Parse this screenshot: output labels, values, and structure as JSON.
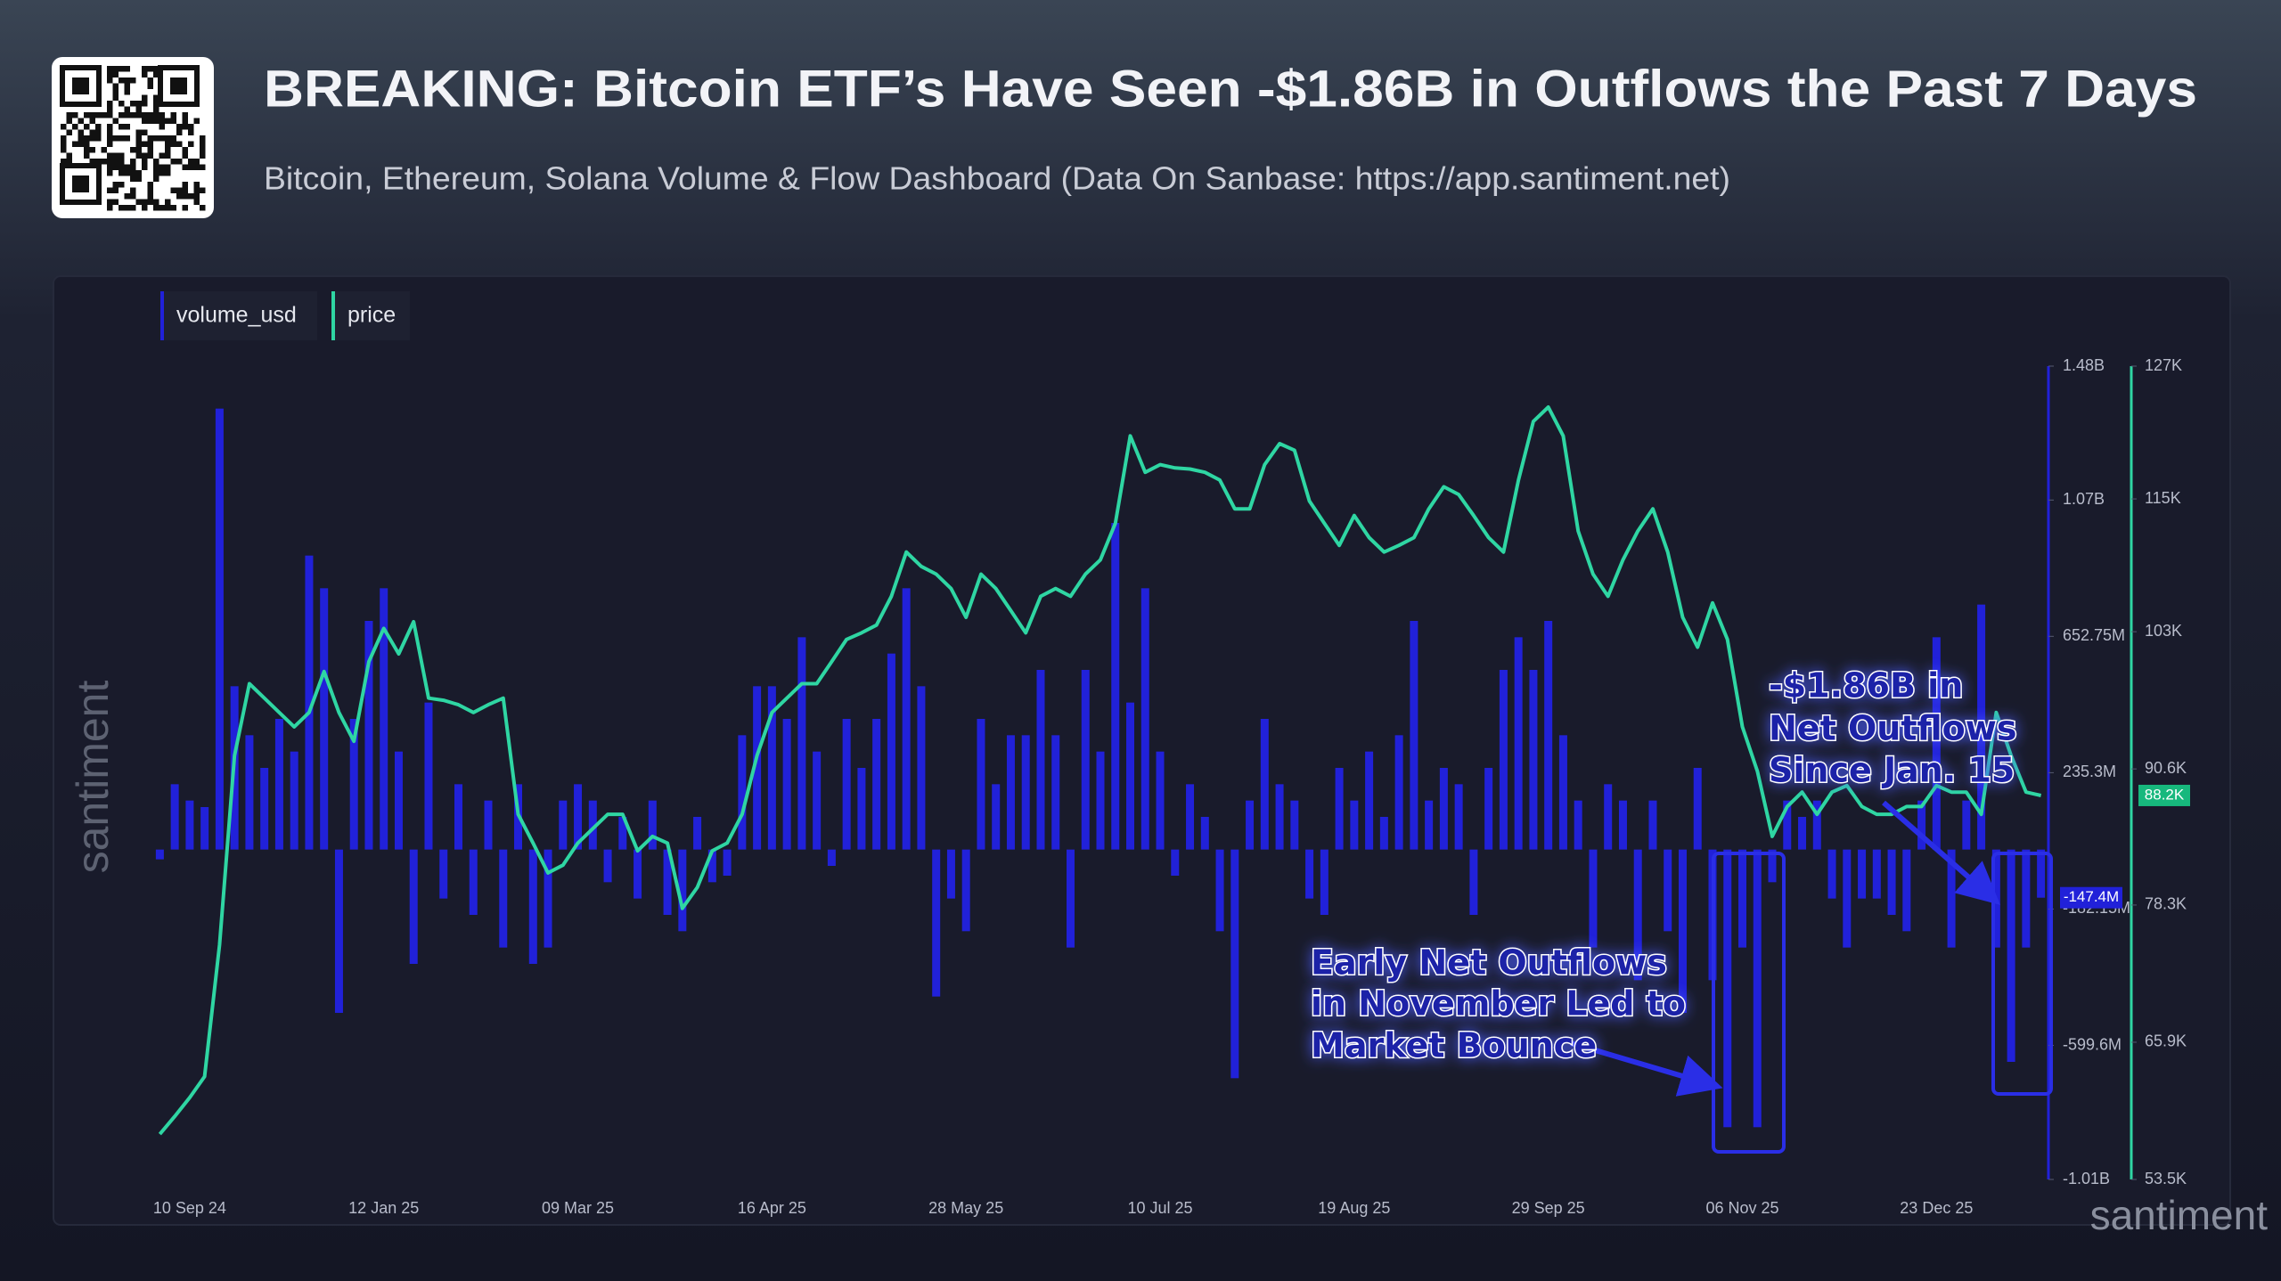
{
  "chart_data": {
    "type": "bar-line",
    "title": "BREAKING: Bitcoin ETF’s Have Seen -$1.86B in Outflows the Past 7 Days",
    "subtitle": "Bitcoin, Ethereum, Solana Volume & Flow Dashboard (Data On Sanbase: https://app.santiment.net)",
    "watermark": "santiment",
    "x": [
      null,
      null,
      "10 Sep 24",
      null,
      null,
      null,
      null,
      null,
      null,
      null,
      null,
      null,
      null,
      null,
      null,
      "12 Jan 25",
      null,
      null,
      null,
      null,
      null,
      null,
      null,
      null,
      null,
      null,
      null,
      null,
      "09 Mar 25",
      null,
      null,
      null,
      null,
      null,
      null,
      null,
      null,
      null,
      null,
      null,
      null,
      "16 Apr 25",
      null,
      null,
      null,
      null,
      null,
      null,
      null,
      null,
      null,
      null,
      null,
      null,
      "28 May 25",
      null,
      null,
      null,
      null,
      null,
      null,
      null,
      null,
      null,
      null,
      null,
      null,
      "10 Jul 25",
      null,
      null,
      null,
      null,
      null,
      null,
      null,
      null,
      null,
      null,
      null,
      null,
      "19 Aug 25",
      null,
      null,
      null,
      null,
      null,
      null,
      null,
      null,
      null,
      null,
      null,
      null,
      "29 Sep 25",
      null,
      null,
      null,
      null,
      null,
      null,
      null,
      null,
      null,
      null,
      null,
      null,
      "06 Nov 25",
      null,
      null,
      null,
      null,
      null,
      null,
      null,
      null,
      null,
      null,
      null,
      null,
      "23 Dec 25",
      null,
      null,
      null,
      null,
      null,
      null,
      null
    ],
    "series": [
      {
        "name": "volume_usd",
        "color": "#2121d9",
        "last_label": "-147.4M",
        "values": [
          -30000000,
          200000000,
          150000000,
          130000000,
          1350000000,
          500000000,
          350000000,
          250000000,
          400000000,
          300000000,
          900000000,
          800000000,
          -500000000,
          400000000,
          700000000,
          800000000,
          300000000,
          -350000000,
          450000000,
          -150000000,
          200000000,
          -200000000,
          150000000,
          -300000000,
          200000000,
          -350000000,
          -300000000,
          150000000,
          200000000,
          150000000,
          -100000000,
          100000000,
          -150000000,
          150000000,
          -200000000,
          -250000000,
          100000000,
          -100000000,
          -80000000,
          350000000,
          500000000,
          500000000,
          400000000,
          650000000,
          300000000,
          -50000000,
          400000000,
          250000000,
          400000000,
          600000000,
          800000000,
          500000000,
          -450000000,
          -150000000,
          -250000000,
          400000000,
          200000000,
          350000000,
          350000000,
          550000000,
          350000000,
          -300000000,
          550000000,
          300000000,
          1000000000,
          450000000,
          800000000,
          300000000,
          -80000000,
          200000000,
          100000000,
          -250000000,
          -700000000,
          150000000,
          400000000,
          200000000,
          150000000,
          -150000000,
          -200000000,
          250000000,
          150000000,
          300000000,
          100000000,
          350000000,
          700000000,
          150000000,
          250000000,
          200000000,
          -200000000,
          250000000,
          550000000,
          650000000,
          550000000,
          700000000,
          350000000,
          150000000,
          -300000000,
          200000000,
          150000000,
          -400000000,
          150000000,
          -250000000,
          -500000000,
          250000000,
          -400000000,
          -850000000,
          -300000000,
          -850000000,
          -100000000,
          150000000,
          100000000,
          150000000,
          -150000000,
          -300000000,
          -150000000,
          -150000000,
          -200000000,
          -250000000,
          150000000,
          650000000,
          -300000000,
          150000000,
          750000000,
          -300000000,
          -650000000,
          -300000000,
          -147400000
        ]
      },
      {
        "name": "price",
        "color": "#2fd6a3",
        "axis": "y2",
        "last_label": "88.2K",
        "values": [
          57600,
          59200,
          60900,
          62800,
          74700,
          91800,
          98300,
          97000,
          95700,
          94400,
          95700,
          99400,
          95700,
          93100,
          100300,
          103300,
          101000,
          103900,
          97000,
          96800,
          96400,
          95700,
          96400,
          97000,
          86500,
          83900,
          81200,
          81900,
          83900,
          85200,
          86500,
          86500,
          83200,
          84500,
          83900,
          78000,
          79900,
          83200,
          83900,
          86500,
          91800,
          95700,
          97000,
          98300,
          98300,
          100300,
          102300,
          102900,
          103600,
          106200,
          110200,
          108900,
          108200,
          106900,
          104300,
          108200,
          106900,
          104900,
          102900,
          106200,
          106900,
          106200,
          108200,
          109500,
          112800,
          120700,
          117400,
          118100,
          117800,
          117700,
          117400,
          116700,
          114100,
          114100,
          118100,
          120000,
          119400,
          114800,
          112800,
          110800,
          113500,
          111500,
          110200,
          110800,
          111500,
          114100,
          116100,
          115400,
          113500,
          111500,
          110200,
          116700,
          122000,
          123300,
          120700,
          112100,
          108200,
          106200,
          109500,
          112100,
          114100,
          110200,
          104300,
          101600,
          105600,
          102300,
          94400,
          90400,
          84500,
          87200,
          88500,
          86500,
          88500,
          89100,
          87200,
          86500,
          86500,
          87200,
          87200,
          89100,
          88500,
          88500,
          86500,
          95700,
          91800,
          88500,
          88200
        ]
      }
    ],
    "ylim": [
      -1010000000,
      1480000000
    ],
    "yticks": [
      {
        "value": 1480000000,
        "label": "1.48B"
      },
      {
        "value": 1070000000,
        "label": "1.07B"
      },
      {
        "value": 652750000,
        "label": "652.75M"
      },
      {
        "value": 235300000,
        "label": "235.3M"
      },
      {
        "value": -182150000,
        "label": "-182.15M"
      },
      {
        "value": -599600000,
        "label": "-599.6M"
      },
      {
        "value": -1010000000,
        "label": "-1.01B"
      }
    ],
    "y2lim": [
      53500,
      127000
    ],
    "y2ticks": [
      {
        "value": 127000,
        "label": "127K"
      },
      {
        "value": 115000,
        "label": "115K"
      },
      {
        "value": 103000,
        "label": "103K"
      },
      {
        "value": 90600,
        "label": "90.6K"
      },
      {
        "value": 78300,
        "label": "78.3K"
      },
      {
        "value": 65900,
        "label": "65.9K"
      },
      {
        "value": 53500,
        "label": "53.5K"
      }
    ],
    "annotations": [
      {
        "lines": [
          "-$1.86B in",
          "Net Outflows",
          "Since Jan. 15"
        ]
      },
      {
        "lines": [
          "Early Net Outflows",
          "in November Led to",
          "Market Bounce"
        ]
      }
    ]
  }
}
